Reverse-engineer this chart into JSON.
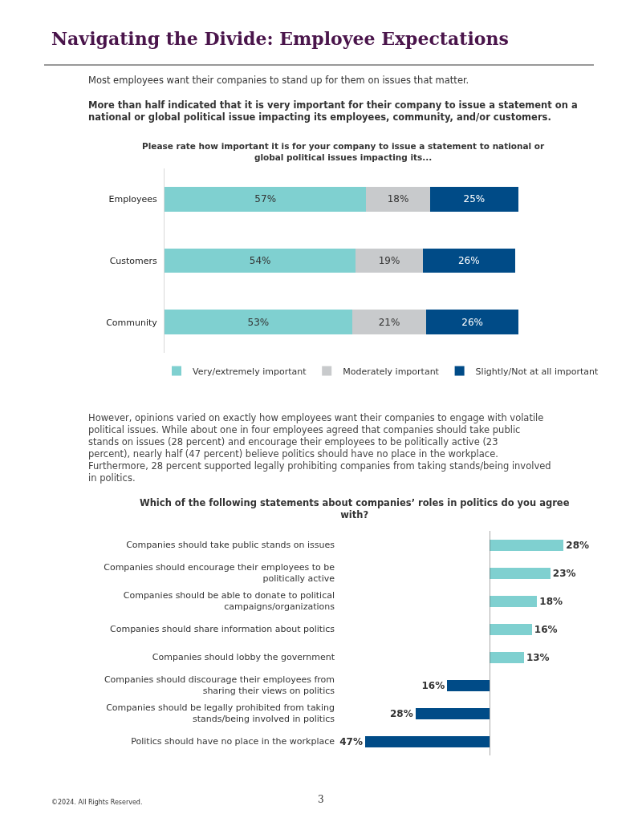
{
  "chart_data": [
    {
      "type": "bar",
      "orientation": "horizontal",
      "stacked": true,
      "title": "Please rate how important it is for your company to issue a statement to national or global political issues impacting its...",
      "annotations": [
        "Navigating the Divide: Employee Expectations",
        "Most employees want their companies to stand up for them on issues that matter.",
        "More than half indicated that it is very important for their company to issue a statement on a national or global political issue impacting its employees, community, and/or customers."
      ],
      "categories": [
        "Employees",
        "Customers",
        "Community"
      ],
      "series": [
        {
          "name": "Very/extremely important",
          "color": "#7fd0d0",
          "values": [
            57,
            54,
            53
          ],
          "value_labels": [
            "57%",
            "54%",
            "53%"
          ]
        },
        {
          "name": "Moderately important",
          "color": "#c8cacc",
          "values": [
            18,
            19,
            21
          ],
          "value_labels": [
            "18%",
            "19%",
            "21%"
          ]
        },
        {
          "name": "Slightly/Not at all important",
          "color": "#004b87",
          "values": [
            25,
            26,
            26
          ],
          "value_labels": [
            "25%",
            "26%",
            "26%"
          ]
        }
      ],
      "legend": "bottom"
    },
    {
      "type": "bar",
      "orientation": "horizontal",
      "title": "Which of the following statements about companies’ roles in politics do you agree with?",
      "annotations": [
        "However, opinions varied on exactly how employees want their companies to engage with volatile political issues. While about one in four employees agreed that companies should take public stands on issues (28 percent) and encourage their employees to be politically active (23 percent), nearly half (47 percent) believe politics should have no place in the workplace. Furthermore, 28 percent supported legally prohibiting companies from taking stands/being involved in politics."
      ],
      "categories": [
        "Companies should take public stands on issues",
        "Companies should encourage their employees to be politically active",
        "Companies should be able to donate to political campaigns/organizations",
        "Companies should share information about politics",
        "Companies should lobby the government"
      ],
      "values": [
        28,
        23,
        18,
        16,
        13
      ],
      "value_labels": [
        "28%",
        "23%",
        "18%",
        "16%",
        "13%"
      ],
      "colors": [
        "#7fd0d0",
        "#7fd0d0",
        "#7fd0d0",
        "#7fd0d0",
        "#7fd0d0"
      ]
    },
    {
      "type": "bar",
      "orientation": "horizontal",
      "annotations": [
        "©2024. All Rights Reserved.",
        "3"
      ],
      "categories": [
        "Companies should discourage their employees from sharing their views on politics",
        "Companies should be legally prohibited from taking stands/being involved in politics",
        "Politics should have no place in the workplace"
      ],
      "values": [
        16,
        28,
        47
      ],
      "value_labels": [
        "16%",
        "28%",
        "47%"
      ],
      "colors": [
        "#004b87",
        "#004b87",
        "#004b87"
      ],
      "xlim": [
        47,
        0
      ]
    }
  ]
}
